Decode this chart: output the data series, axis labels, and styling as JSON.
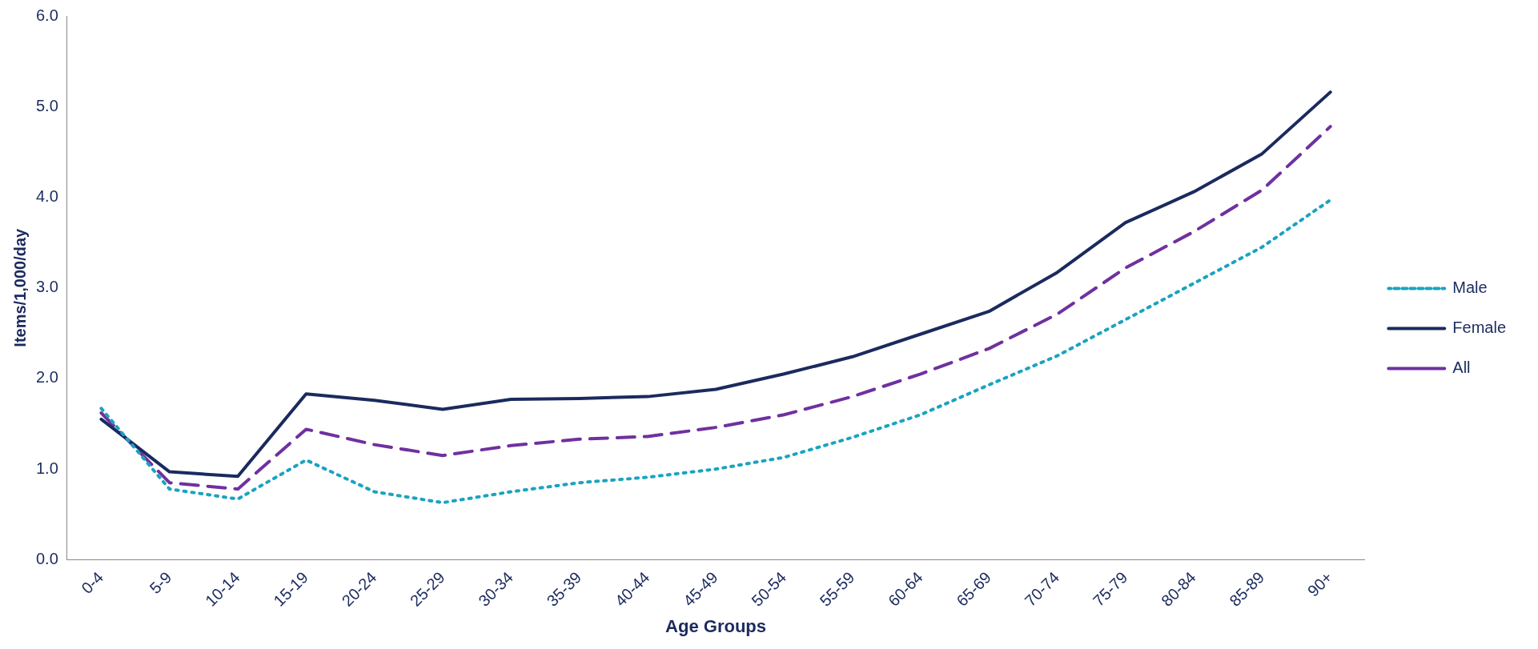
{
  "chart_data": {
    "type": "line",
    "xlabel": "Age Groups",
    "ylabel": "Items/1,000/day",
    "categories": [
      "0-4",
      "5-9",
      "10-14",
      "15-19",
      "20-24",
      "25-29",
      "30-34",
      "35-39",
      "40-44",
      "45-49",
      "50-54",
      "55-59",
      "60-64",
      "65-69",
      "70-74",
      "75-79",
      "80-84",
      "85-89",
      "90+"
    ],
    "series": [
      {
        "name": "Male",
        "color": "#1aa3c0",
        "line_style": "dotted",
        "values": [
          1.67,
          0.78,
          0.67,
          1.1,
          0.75,
          0.63,
          0.75,
          0.85,
          0.91,
          1.0,
          1.13,
          1.35,
          1.6,
          1.93,
          2.25,
          2.65,
          3.05,
          3.45,
          3.97
        ]
      },
      {
        "name": "Female",
        "color": "#1b2a5e",
        "line_style": "solid",
        "values": [
          1.55,
          0.97,
          0.92,
          1.83,
          1.76,
          1.66,
          1.77,
          1.78,
          1.8,
          1.88,
          2.05,
          2.24,
          2.49,
          2.74,
          3.17,
          3.72,
          4.06,
          4.48,
          5.16
        ]
      },
      {
        "name": "All",
        "color": "#7030a0",
        "line_style": "dashed",
        "values": [
          1.62,
          0.85,
          0.78,
          1.44,
          1.27,
          1.15,
          1.26,
          1.33,
          1.36,
          1.46,
          1.6,
          1.8,
          2.05,
          2.33,
          2.71,
          3.22,
          3.62,
          4.08,
          4.78
        ]
      }
    ],
    "ylim": [
      0,
      6
    ],
    "yticks": [
      {
        "value": 0,
        "label": "0.0"
      },
      {
        "value": 1,
        "label": "1.0"
      },
      {
        "value": 2,
        "label": "2.0"
      },
      {
        "value": 3,
        "label": "3.0"
      },
      {
        "value": 4,
        "label": "4.0"
      },
      {
        "value": 5,
        "label": "5.0"
      },
      {
        "value": 6,
        "label": "6.0"
      }
    ],
    "grid": false,
    "legend": "right",
    "marker": "none"
  }
}
